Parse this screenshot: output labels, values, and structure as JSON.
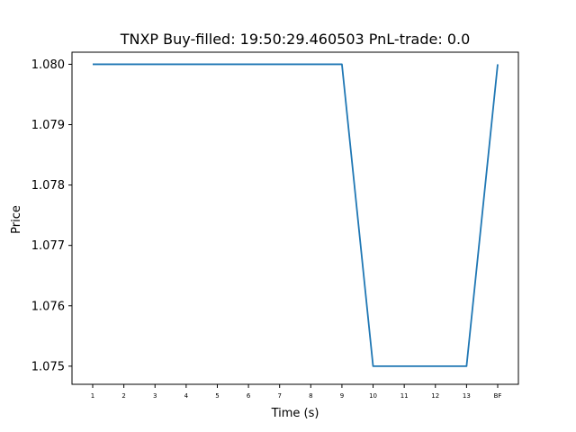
{
  "chart_data": {
    "type": "line",
    "title": "TNXP  Buy-filled:  19:50:29.460503  PnL-trade:  0.0",
    "xlabel": "Time (s)",
    "ylabel": "Price",
    "categories": [
      "1",
      "2",
      "3",
      "4",
      "5",
      "6",
      "7",
      "8",
      "9",
      "10",
      "11",
      "12",
      "13",
      "BF"
    ],
    "series": [
      {
        "values": [
          1.08,
          1.08,
          1.08,
          1.08,
          1.08,
          1.08,
          1.08,
          1.08,
          1.08,
          1.075,
          1.075,
          1.075,
          1.075,
          1.08
        ],
        "color": "#1f77b4"
      }
    ],
    "ylim": [
      1.0747,
      1.0802
    ],
    "yticks": [
      "1.075",
      "1.076",
      "1.077",
      "1.078",
      "1.079",
      "1.080"
    ],
    "grid": false,
    "legend": "none"
  }
}
